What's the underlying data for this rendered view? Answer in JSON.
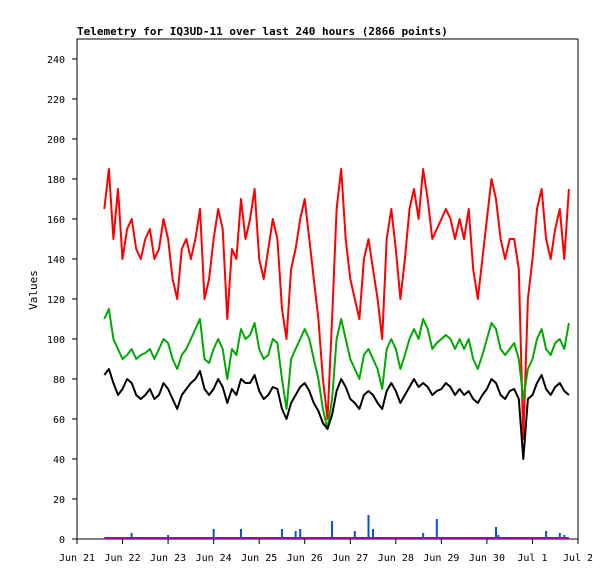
{
  "chart_data": {
    "type": "line",
    "title": "Telemetry for IQ3UD-11 over last 240 hours (2866 points)",
    "xlabel": "",
    "ylabel": "Values",
    "ylim": [
      0,
      250
    ],
    "yticks": [
      0,
      20,
      40,
      60,
      80,
      100,
      120,
      140,
      160,
      180,
      200,
      220,
      240
    ],
    "xlim": [
      "Jun 21",
      "Jul 2"
    ],
    "xticks": [
      "Jun 21",
      "Jun 22",
      "Jun 23",
      "Jun 24",
      "Jun 25",
      "Jun 26",
      "Jun 27",
      "Jun 28",
      "Jun 29",
      "Jun 30",
      "Jul 1",
      "Jul 2"
    ],
    "grid": false,
    "legend": "none",
    "colors": {
      "red": "#ff0000",
      "green": "#00aa00",
      "black": "#000000",
      "blue": "#0055cc",
      "purple": "#aa00aa"
    },
    "series": [
      {
        "color": "#ff0000",
        "x": [
          21.6,
          21.7,
          21.8,
          21.9,
          22.0,
          22.1,
          22.2,
          22.3,
          22.4,
          22.5,
          22.6,
          22.7,
          22.8,
          22.9,
          23.0,
          23.1,
          23.2,
          23.3,
          23.4,
          23.5,
          23.6,
          23.7,
          23.8,
          23.9,
          24.0,
          24.1,
          24.2,
          24.3,
          24.4,
          24.5,
          24.6,
          24.7,
          24.8,
          24.9,
          25.0,
          25.1,
          25.2,
          25.3,
          25.4,
          25.5,
          25.6,
          25.7,
          25.8,
          25.9,
          26.0,
          26.1,
          26.2,
          26.3,
          26.4,
          26.5,
          26.6,
          26.7,
          26.8,
          26.9,
          27.0,
          27.1,
          27.2,
          27.3,
          27.4,
          27.5,
          27.6,
          27.7,
          27.8,
          27.9,
          28.0,
          28.1,
          28.2,
          28.3,
          28.4,
          28.5,
          28.6,
          28.7,
          28.8,
          28.9,
          29.0,
          29.1,
          29.2,
          29.3,
          29.4,
          29.5,
          29.6,
          29.7,
          29.8,
          29.9,
          30.0,
          30.1,
          30.2,
          30.3,
          30.4,
          30.5,
          30.6,
          30.7,
          30.8,
          30.9,
          31.0,
          31.1,
          31.2,
          31.3,
          31.4,
          31.5,
          31.6,
          31.7,
          31.8
        ],
        "y": [
          165,
          185,
          150,
          175,
          140,
          155,
          160,
          145,
          140,
          150,
          155,
          140,
          145,
          160,
          150,
          130,
          120,
          145,
          150,
          140,
          150,
          165,
          120,
          130,
          150,
          165,
          155,
          110,
          145,
          140,
          170,
          150,
          160,
          175,
          140,
          130,
          145,
          160,
          150,
          115,
          100,
          135,
          145,
          160,
          170,
          150,
          130,
          110,
          80,
          60,
          110,
          165,
          185,
          150,
          130,
          120,
          110,
          140,
          150,
          135,
          120,
          100,
          150,
          165,
          145,
          120,
          140,
          165,
          175,
          160,
          185,
          170,
          150,
          155,
          160,
          165,
          160,
          150,
          160,
          150,
          165,
          135,
          120,
          140,
          160,
          180,
          170,
          150,
          140,
          150,
          150,
          135,
          50,
          120,
          140,
          165,
          175,
          150,
          140,
          155,
          165,
          140,
          175
        ]
      },
      {
        "color": "#00aa00",
        "x": [
          21.6,
          21.7,
          21.8,
          21.9,
          22.0,
          22.1,
          22.2,
          22.3,
          22.4,
          22.5,
          22.6,
          22.7,
          22.8,
          22.9,
          23.0,
          23.1,
          23.2,
          23.3,
          23.4,
          23.5,
          23.6,
          23.7,
          23.8,
          23.9,
          24.0,
          24.1,
          24.2,
          24.3,
          24.4,
          24.5,
          24.6,
          24.7,
          24.8,
          24.9,
          25.0,
          25.1,
          25.2,
          25.3,
          25.4,
          25.5,
          25.6,
          25.7,
          25.8,
          25.9,
          26.0,
          26.1,
          26.2,
          26.3,
          26.4,
          26.5,
          26.6,
          26.7,
          26.8,
          26.9,
          27.0,
          27.1,
          27.2,
          27.3,
          27.4,
          27.5,
          27.6,
          27.7,
          27.8,
          27.9,
          28.0,
          28.1,
          28.2,
          28.3,
          28.4,
          28.5,
          28.6,
          28.7,
          28.8,
          28.9,
          29.0,
          29.1,
          29.2,
          29.3,
          29.4,
          29.5,
          29.6,
          29.7,
          29.8,
          29.9,
          30.0,
          30.1,
          30.2,
          30.3,
          30.4,
          30.5,
          30.6,
          30.7,
          30.8,
          30.9,
          31.0,
          31.1,
          31.2,
          31.3,
          31.4,
          31.5,
          31.6,
          31.7,
          31.8
        ],
        "y": [
          110,
          115,
          100,
          95,
          90,
          92,
          95,
          90,
          92,
          93,
          95,
          90,
          95,
          100,
          98,
          90,
          85,
          92,
          95,
          100,
          105,
          110,
          90,
          88,
          95,
          100,
          95,
          80,
          95,
          92,
          105,
          100,
          102,
          108,
          95,
          90,
          92,
          100,
          98,
          80,
          65,
          90,
          95,
          100,
          105,
          100,
          90,
          80,
          65,
          55,
          70,
          100,
          110,
          100,
          90,
          85,
          80,
          92,
          95,
          90,
          85,
          75,
          95,
          100,
          95,
          85,
          92,
          100,
          105,
          100,
          110,
          105,
          95,
          98,
          100,
          102,
          100,
          95,
          100,
          95,
          100,
          90,
          85,
          92,
          100,
          108,
          105,
          95,
          92,
          95,
          98,
          90,
          70,
          85,
          90,
          100,
          105,
          95,
          92,
          98,
          100,
          95,
          108
        ]
      },
      {
        "color": "#000000",
        "x": [
          21.6,
          21.7,
          21.8,
          21.9,
          22.0,
          22.1,
          22.2,
          22.3,
          22.4,
          22.5,
          22.6,
          22.7,
          22.8,
          22.9,
          23.0,
          23.1,
          23.2,
          23.3,
          23.4,
          23.5,
          23.6,
          23.7,
          23.8,
          23.9,
          24.0,
          24.1,
          24.2,
          24.3,
          24.4,
          24.5,
          24.6,
          24.7,
          24.8,
          24.9,
          25.0,
          25.1,
          25.2,
          25.3,
          25.4,
          25.5,
          25.6,
          25.7,
          25.8,
          25.9,
          26.0,
          26.1,
          26.2,
          26.3,
          26.4,
          26.5,
          26.6,
          26.7,
          26.8,
          26.9,
          27.0,
          27.1,
          27.2,
          27.3,
          27.4,
          27.5,
          27.6,
          27.7,
          27.8,
          27.9,
          28.0,
          28.1,
          28.2,
          28.3,
          28.4,
          28.5,
          28.6,
          28.7,
          28.8,
          28.9,
          29.0,
          29.1,
          29.2,
          29.3,
          29.4,
          29.5,
          29.6,
          29.7,
          29.8,
          29.9,
          30.0,
          30.1,
          30.2,
          30.3,
          30.4,
          30.5,
          30.6,
          30.7,
          30.8,
          30.9,
          31.0,
          31.1,
          31.2,
          31.3,
          31.4,
          31.5,
          31.6,
          31.7,
          31.8
        ],
        "y": [
          82,
          85,
          78,
          72,
          75,
          80,
          78,
          72,
          70,
          72,
          75,
          70,
          72,
          78,
          75,
          70,
          65,
          72,
          75,
          78,
          80,
          84,
          75,
          72,
          75,
          80,
          76,
          68,
          75,
          72,
          80,
          78,
          78,
          82,
          74,
          70,
          72,
          76,
          75,
          65,
          60,
          68,
          72,
          76,
          78,
          74,
          68,
          64,
          58,
          55,
          62,
          74,
          80,
          76,
          70,
          68,
          65,
          72,
          74,
          72,
          68,
          65,
          74,
          78,
          74,
          68,
          72,
          76,
          80,
          76,
          78,
          76,
          72,
          74,
          75,
          78,
          76,
          72,
          75,
          72,
          74,
          70,
          68,
          72,
          75,
          80,
          78,
          72,
          70,
          74,
          75,
          70,
          40,
          70,
          72,
          78,
          82,
          75,
          72,
          76,
          78,
          74,
          72
        ]
      },
      {
        "color": "#0055cc",
        "x": [
          22.2,
          23.0,
          23.5,
          24.0,
          24.1,
          24.6,
          24.9,
          25.5,
          25.8,
          25.9,
          26.3,
          26.6,
          26.95,
          27.1,
          27.4,
          27.5,
          28.6,
          28.9,
          29.0,
          30.2,
          30.25,
          30.8,
          31.3,
          31.6,
          31.7
        ],
        "y": [
          3,
          2,
          1,
          5,
          1,
          5,
          1,
          5,
          4,
          5,
          1,
          9,
          1,
          4,
          12,
          5,
          3,
          10,
          1,
          6,
          2,
          1,
          4,
          3,
          2
        ]
      },
      {
        "color": "#aa00aa",
        "x": [
          21.6,
          31.8
        ],
        "y": [
          0.5,
          0.5
        ]
      }
    ]
  }
}
